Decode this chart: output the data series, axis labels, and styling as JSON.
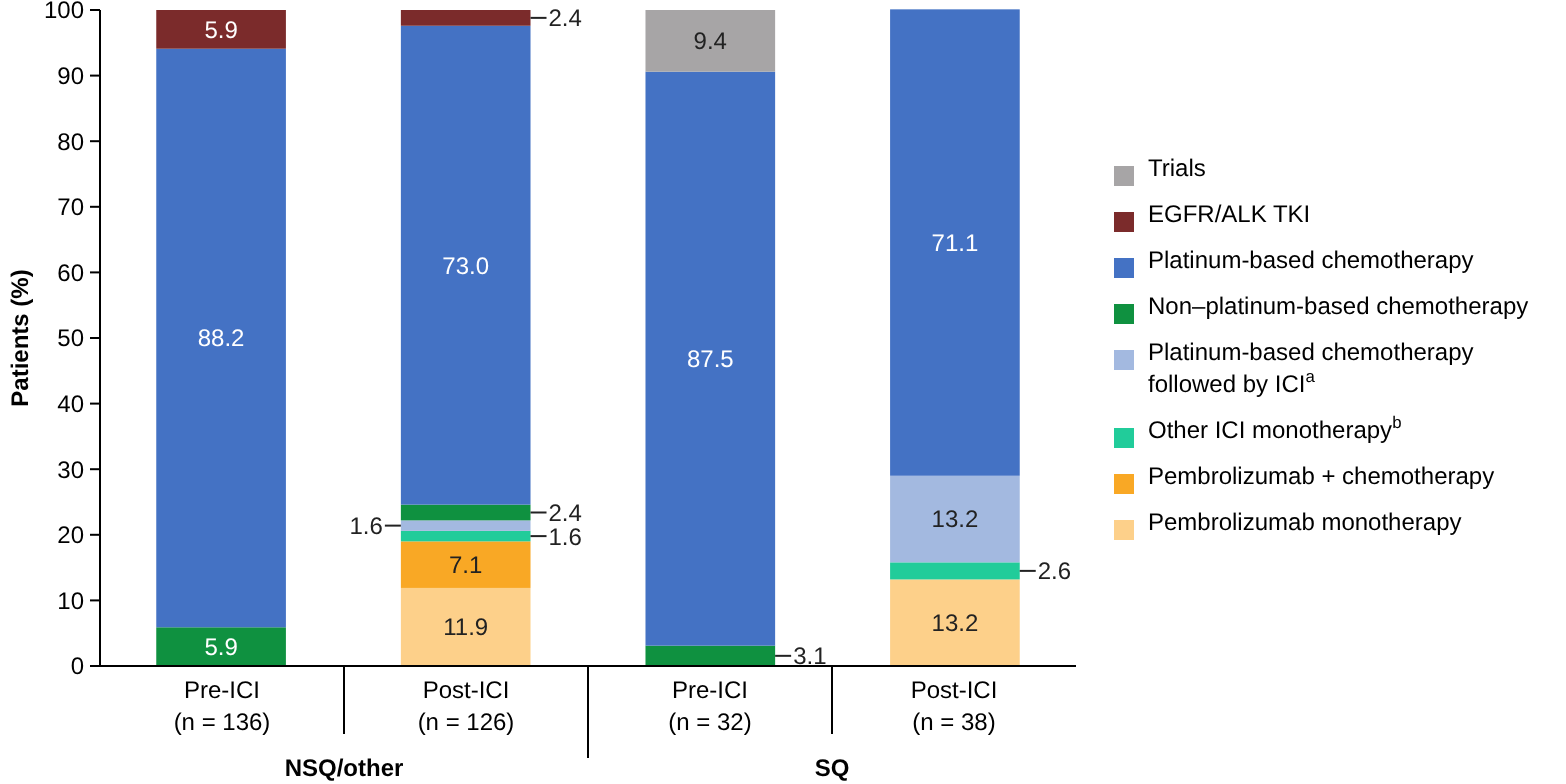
{
  "chart_data": {
    "type": "bar",
    "stacked": true,
    "ylabel": "Patients (%)",
    "categories": [
      "Pre-ICI\n(n = 136)",
      "Post-ICI\n(n = 126)",
      "Pre-ICI\n(n = 32)",
      "Post-ICI\n(n = 38)"
    ],
    "annotations": [
      "NSQ/other",
      "SQ"
    ],
    "ylim": [
      0,
      100
    ],
    "yticks": [
      0,
      10,
      20,
      30,
      40,
      50,
      60,
      70,
      80,
      90,
      100
    ],
    "grid": false,
    "legend": "right",
    "series": [
      {
        "name": "Pembrolizumab monotherapy",
        "color": "#fdd08a",
        "values": [
          null,
          11.9,
          null,
          13.2
        ],
        "value_labels": [
          null,
          "11.9",
          null,
          "13.2"
        ]
      },
      {
        "name": "Pembrolizumab + chemotherapy",
        "color": "#f9a825",
        "values": [
          null,
          7.1,
          null,
          null
        ],
        "value_labels": [
          null,
          "7.1",
          null,
          null
        ]
      },
      {
        "name": "Other ICI monotherapy$^{b}$",
        "color": "#21cc9a",
        "values": [
          null,
          1.6,
          null,
          2.6
        ],
        "value_labels": [
          null,
          "1.6",
          null,
          "2.6"
        ]
      },
      {
        "name": "Platinum-based chemotherapy followed by ICI$^{a}$",
        "color": "#a3b9e0",
        "values": [
          null,
          1.6,
          null,
          13.2
        ],
        "value_labels": [
          null,
          "1.6",
          null,
          "13.2"
        ]
      },
      {
        "name": "Non–platinum-based chemotherapy",
        "color": "#0f9140",
        "values": [
          5.9,
          2.4,
          3.1,
          null
        ],
        "value_labels": [
          "5.9",
          "2.4",
          "3.1",
          null
        ]
      },
      {
        "name": "Platinum-based chemotherapy",
        "color": "#4472c4",
        "values": [
          88.2,
          73.0,
          87.5,
          71.1
        ],
        "value_labels": [
          "88.2",
          "73.0",
          "87.5",
          "71.1"
        ]
      },
      {
        "name": "EGFR/ALK TKI",
        "color": "#7b2b2b",
        "values": [
          5.9,
          2.4,
          null,
          null
        ],
        "value_labels": [
          "5.9",
          "2.4",
          null,
          null
        ]
      },
      {
        "name": "Trials",
        "color": "#a7a5a6",
        "values": [
          null,
          null,
          9.4,
          null
        ],
        "value_labels": [
          null,
          null,
          "9.4",
          null
        ]
      }
    ]
  }
}
